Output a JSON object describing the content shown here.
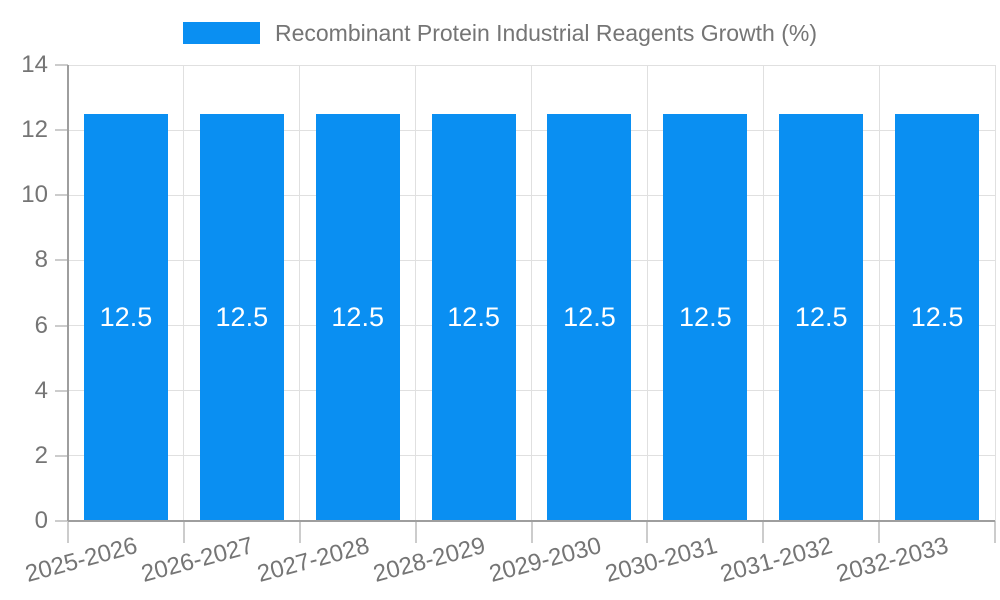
{
  "chart_data": {
    "type": "bar",
    "title": "Recombinant Protein Industrial Reagents Growth (%)",
    "categories": [
      "2025-2026",
      "2026-2027",
      "2027-2028",
      "2028-2029",
      "2029-2030",
      "2030-2031",
      "2031-2032",
      "2032-2033"
    ],
    "values": [
      12.5,
      12.5,
      12.5,
      12.5,
      12.5,
      12.5,
      12.5,
      12.5
    ],
    "bar_labels": [
      "12.5",
      "12.5",
      "12.5",
      "12.5",
      "12.5",
      "12.5",
      "12.5",
      "12.5"
    ],
    "xlabel": "",
    "ylabel": "",
    "ylim": [
      0,
      14
    ],
    "yticks": [
      0,
      2,
      4,
      6,
      8,
      10,
      12,
      14
    ],
    "grid": true,
    "legend_position": "top",
    "colors": {
      "bar": "#0A8FF2",
      "axis_text": "#757575",
      "bar_label_text": "#FFFFFF",
      "gridline": "#E0E0E0",
      "tick": "#CCCCCC",
      "axis_line": "#9E9E9E",
      "background": "#FFFFFF"
    }
  }
}
